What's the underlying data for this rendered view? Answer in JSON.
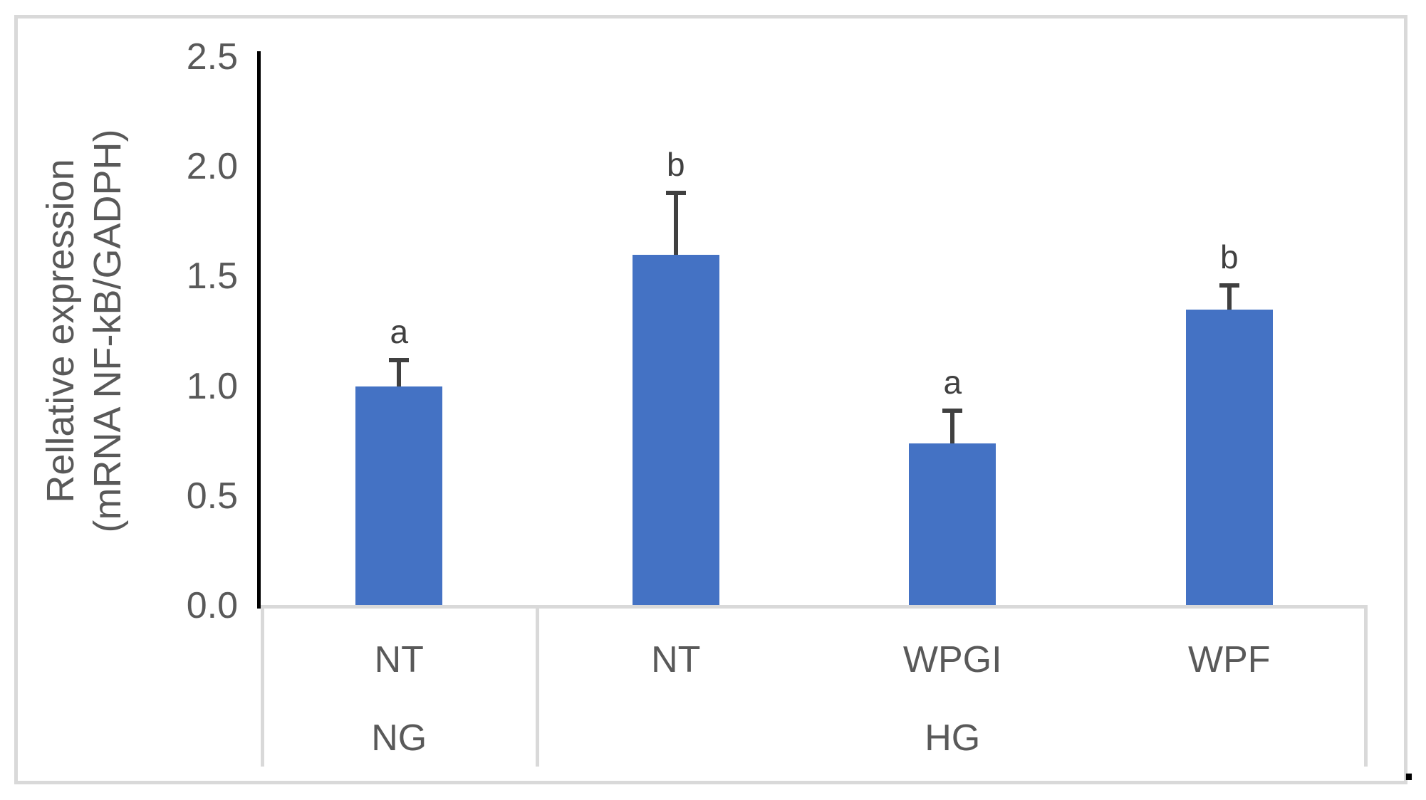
{
  "figure": {
    "trailing_period": "."
  },
  "chart_data": {
    "type": "bar",
    "title": "",
    "ylabel_line1": "Rellative expression",
    "ylabel_line2": "(mRNA NF-kB/GADPH)",
    "ylabel": "Rellative expression (mRNA NF-kB/GADPH)",
    "xlabel": "",
    "ylim": [
      0,
      2.5
    ],
    "y_tick_values": [
      0.0,
      0.5,
      1.0,
      1.5,
      2.0,
      2.5
    ],
    "y_tick_labels": [
      "0.0",
      "0.5",
      "1.0",
      "1.5",
      "2.0",
      "2.5"
    ],
    "grid": false,
    "legend_position": "none",
    "categories": [
      "NT",
      "NT",
      "WPGI",
      "WPF"
    ],
    "group_row": [
      {
        "label": "NG",
        "span": 1
      },
      {
        "label": "HG",
        "span": 3
      }
    ],
    "values": [
      1.0,
      1.6,
      0.74,
      1.35
    ],
    "errors_plus": [
      0.12,
      0.28,
      0.15,
      0.11
    ],
    "significance_letters": [
      "a",
      "b",
      "a",
      "b"
    ],
    "colors": {
      "bar": "#4472C4",
      "error_bar": "#404040",
      "sig_letter": "#404040",
      "axis_line": "#000000",
      "table_line": "#D9D9D9",
      "frame_border": "#D9D9D9",
      "tick_label": "#595959",
      "category_label": "#595959",
      "y_title": "#595959"
    }
  }
}
